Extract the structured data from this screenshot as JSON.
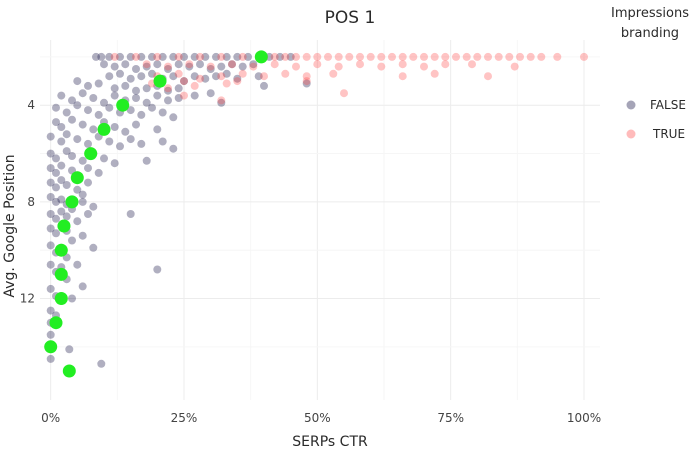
{
  "chart_data": {
    "type": "scatter",
    "title": "POS 1",
    "xlabel": "SERPs CTR",
    "ylabel": "Avg. Google Position",
    "xlim": [
      -0.02,
      1.03
    ],
    "ylim": [
      16.2,
      1.3
    ],
    "y_reversed": true,
    "grid": true,
    "x_ticks": [
      {
        "value": 0,
        "label": "0%"
      },
      {
        "value": 0.25,
        "label": "25%"
      },
      {
        "value": 0.5,
        "label": "50%"
      },
      {
        "value": 0.75,
        "label": "75%"
      },
      {
        "value": 1.0,
        "label": "100%"
      }
    ],
    "y_ticks": [
      {
        "value": 4,
        "label": "4"
      },
      {
        "value": 8,
        "label": "8"
      },
      {
        "value": 12,
        "label": "12"
      }
    ],
    "legend": {
      "title_line1": "Impressions",
      "title_line2": "branding",
      "placement": "right",
      "entries": [
        {
          "label": "FALSE",
          "color": "#1e1b4b"
        },
        {
          "label": "TRUE",
          "color": "#ff3b3b"
        }
      ]
    },
    "series": [
      {
        "name": "FALSE",
        "color": "#1e1b4b",
        "opacity": 0.35,
        "points": [
          [
            0.085,
            2.0
          ],
          [
            0.095,
            2.0
          ],
          [
            0.11,
            2.0
          ],
          [
            0.13,
            2.0
          ],
          [
            0.15,
            2.0
          ],
          [
            0.17,
            2.0
          ],
          [
            0.19,
            2.0
          ],
          [
            0.21,
            2.0
          ],
          [
            0.23,
            2.0
          ],
          [
            0.25,
            2.0
          ],
          [
            0.27,
            2.0
          ],
          [
            0.29,
            2.0
          ],
          [
            0.31,
            2.0
          ],
          [
            0.33,
            2.0
          ],
          [
            0.35,
            2.0
          ],
          [
            0.37,
            2.0
          ],
          [
            0.41,
            2.0
          ],
          [
            0.43,
            2.0
          ],
          [
            0.45,
            2.0
          ],
          [
            0.1,
            2.3
          ],
          [
            0.12,
            2.4
          ],
          [
            0.14,
            2.3
          ],
          [
            0.16,
            2.5
          ],
          [
            0.18,
            2.4
          ],
          [
            0.2,
            2.3
          ],
          [
            0.22,
            2.5
          ],
          [
            0.24,
            2.3
          ],
          [
            0.26,
            2.4
          ],
          [
            0.28,
            2.3
          ],
          [
            0.3,
            2.5
          ],
          [
            0.32,
            2.4
          ],
          [
            0.34,
            2.3
          ],
          [
            0.36,
            2.4
          ],
          [
            0.38,
            2.3
          ],
          [
            0.11,
            2.8
          ],
          [
            0.13,
            2.7
          ],
          [
            0.15,
            2.9
          ],
          [
            0.17,
            2.8
          ],
          [
            0.19,
            2.7
          ],
          [
            0.21,
            2.9
          ],
          [
            0.23,
            2.8
          ],
          [
            0.25,
            3.0
          ],
          [
            0.27,
            2.8
          ],
          [
            0.29,
            2.9
          ],
          [
            0.31,
            2.8
          ],
          [
            0.33,
            2.7
          ],
          [
            0.35,
            2.9
          ],
          [
            0.39,
            2.8
          ],
          [
            0.05,
            3.0
          ],
          [
            0.07,
            3.2
          ],
          [
            0.09,
            3.1
          ],
          [
            0.12,
            3.3
          ],
          [
            0.14,
            3.2
          ],
          [
            0.16,
            3.4
          ],
          [
            0.18,
            3.3
          ],
          [
            0.2,
            3.2
          ],
          [
            0.22,
            3.4
          ],
          [
            0.24,
            3.3
          ],
          [
            0.3,
            3.5
          ],
          [
            0.4,
            3.2
          ],
          [
            0.48,
            3.1
          ],
          [
            0.02,
            3.6
          ],
          [
            0.04,
            3.8
          ],
          [
            0.06,
            3.5
          ],
          [
            0.08,
            3.7
          ],
          [
            0.1,
            3.9
          ],
          [
            0.12,
            3.6
          ],
          [
            0.14,
            3.8
          ],
          [
            0.16,
            3.7
          ],
          [
            0.18,
            3.9
          ],
          [
            0.2,
            3.6
          ],
          [
            0.22,
            3.8
          ],
          [
            0.24,
            3.7
          ],
          [
            0.27,
            3.6
          ],
          [
            0.32,
            3.9
          ],
          [
            0.01,
            4.1
          ],
          [
            0.03,
            4.3
          ],
          [
            0.05,
            4.0
          ],
          [
            0.07,
            4.2
          ],
          [
            0.09,
            4.4
          ],
          [
            0.11,
            4.1
          ],
          [
            0.13,
            4.3
          ],
          [
            0.15,
            4.2
          ],
          [
            0.17,
            4.4
          ],
          [
            0.19,
            4.1
          ],
          [
            0.21,
            4.3
          ],
          [
            0.23,
            4.5
          ],
          [
            0.01,
            4.7
          ],
          [
            0.02,
            4.9
          ],
          [
            0.04,
            4.6
          ],
          [
            0.06,
            4.8
          ],
          [
            0.08,
            5.0
          ],
          [
            0.1,
            4.7
          ],
          [
            0.12,
            4.9
          ],
          [
            0.14,
            5.1
          ],
          [
            0.16,
            4.8
          ],
          [
            0.2,
            5.0
          ],
          [
            0.0,
            5.3
          ],
          [
            0.02,
            5.5
          ],
          [
            0.03,
            5.2
          ],
          [
            0.05,
            5.4
          ],
          [
            0.07,
            5.6
          ],
          [
            0.09,
            5.3
          ],
          [
            0.11,
            5.5
          ],
          [
            0.13,
            5.7
          ],
          [
            0.15,
            5.4
          ],
          [
            0.17,
            5.6
          ],
          [
            0.21,
            5.5
          ],
          [
            0.23,
            5.8
          ],
          [
            0.0,
            6.0
          ],
          [
            0.01,
            6.2
          ],
          [
            0.03,
            5.9
          ],
          [
            0.04,
            6.1
          ],
          [
            0.06,
            6.3
          ],
          [
            0.08,
            6.0
          ],
          [
            0.1,
            6.2
          ],
          [
            0.12,
            6.4
          ],
          [
            0.18,
            6.3
          ],
          [
            0.0,
            6.6
          ],
          [
            0.01,
            6.8
          ],
          [
            0.02,
            6.5
          ],
          [
            0.04,
            6.7
          ],
          [
            0.05,
            6.9
          ],
          [
            0.07,
            6.6
          ],
          [
            0.09,
            6.8
          ],
          [
            0.0,
            7.2
          ],
          [
            0.01,
            7.4
          ],
          [
            0.02,
            7.1
          ],
          [
            0.03,
            7.3
          ],
          [
            0.05,
            7.5
          ],
          [
            0.07,
            7.2
          ],
          [
            0.06,
            7.7
          ],
          [
            0.0,
            7.8
          ],
          [
            0.01,
            8.0
          ],
          [
            0.02,
            7.9
          ],
          [
            0.03,
            8.1
          ],
          [
            0.04,
            8.3
          ],
          [
            0.06,
            8.0
          ],
          [
            0.08,
            8.2
          ],
          [
            0.0,
            8.5
          ],
          [
            0.01,
            8.7
          ],
          [
            0.02,
            8.4
          ],
          [
            0.03,
            8.6
          ],
          [
            0.05,
            8.8
          ],
          [
            0.07,
            8.5
          ],
          [
            0.15,
            8.5
          ],
          [
            0.0,
            9.1
          ],
          [
            0.01,
            9.3
          ],
          [
            0.02,
            9.0
          ],
          [
            0.03,
            9.2
          ],
          [
            0.04,
            9.6
          ],
          [
            0.06,
            9.4
          ],
          [
            0.08,
            9.9
          ],
          [
            0.0,
            9.8
          ],
          [
            0.01,
            10.1
          ],
          [
            0.02,
            9.9
          ],
          [
            0.03,
            10.3
          ],
          [
            0.05,
            10.6
          ],
          [
            0.2,
            10.8
          ],
          [
            0.0,
            10.6
          ],
          [
            0.01,
            10.9
          ],
          [
            0.02,
            10.7
          ],
          [
            0.03,
            11.2
          ],
          [
            0.06,
            11.5
          ],
          [
            0.0,
            11.6
          ],
          [
            0.01,
            11.9
          ],
          [
            0.02,
            12.1
          ],
          [
            0.04,
            12.0
          ],
          [
            0.0,
            12.5
          ],
          [
            0.01,
            12.7
          ],
          [
            0.0,
            13.0
          ],
          [
            0.0,
            13.5
          ],
          [
            0.0,
            14.0
          ],
          [
            0.0,
            14.5
          ],
          [
            0.035,
            14.1
          ],
          [
            0.095,
            14.7
          ]
        ]
      },
      {
        "name": "TRUE",
        "color": "#ff3b3b",
        "opacity": 0.3,
        "points": [
          [
            0.12,
            2.0
          ],
          [
            0.16,
            2.0
          ],
          [
            0.2,
            2.0
          ],
          [
            0.24,
            2.0
          ],
          [
            0.28,
            2.0
          ],
          [
            0.32,
            2.0
          ],
          [
            0.36,
            2.0
          ],
          [
            0.4,
            2.0
          ],
          [
            0.42,
            2.0
          ],
          [
            0.44,
            2.0
          ],
          [
            0.46,
            2.0
          ],
          [
            0.48,
            2.0
          ],
          [
            0.5,
            2.0
          ],
          [
            0.52,
            2.0
          ],
          [
            0.54,
            2.0
          ],
          [
            0.56,
            2.0
          ],
          [
            0.58,
            2.0
          ],
          [
            0.6,
            2.0
          ],
          [
            0.62,
            2.0
          ],
          [
            0.64,
            2.0
          ],
          [
            0.66,
            2.0
          ],
          [
            0.68,
            2.0
          ],
          [
            0.7,
            2.0
          ],
          [
            0.72,
            2.0
          ],
          [
            0.74,
            2.0
          ],
          [
            0.76,
            2.0
          ],
          [
            0.78,
            2.0
          ],
          [
            0.8,
            2.0
          ],
          [
            0.82,
            2.0
          ],
          [
            0.84,
            2.0
          ],
          [
            0.86,
            2.0
          ],
          [
            0.88,
            2.0
          ],
          [
            0.9,
            2.0
          ],
          [
            0.92,
            2.0
          ],
          [
            0.95,
            2.0
          ],
          [
            1.0,
            2.0
          ],
          [
            0.18,
            2.3
          ],
          [
            0.22,
            2.4
          ],
          [
            0.26,
            2.3
          ],
          [
            0.3,
            2.4
          ],
          [
            0.34,
            2.3
          ],
          [
            0.38,
            2.4
          ],
          [
            0.42,
            2.3
          ],
          [
            0.46,
            2.4
          ],
          [
            0.5,
            2.3
          ],
          [
            0.54,
            2.4
          ],
          [
            0.58,
            2.3
          ],
          [
            0.62,
            2.4
          ],
          [
            0.66,
            2.3
          ],
          [
            0.7,
            2.4
          ],
          [
            0.74,
            2.3
          ],
          [
            0.79,
            2.3
          ],
          [
            0.87,
            2.4
          ],
          [
            0.2,
            2.8
          ],
          [
            0.24,
            2.7
          ],
          [
            0.28,
            2.9
          ],
          [
            0.32,
            2.8
          ],
          [
            0.36,
            2.7
          ],
          [
            0.4,
            2.8
          ],
          [
            0.44,
            2.7
          ],
          [
            0.48,
            2.8
          ],
          [
            0.53,
            2.7
          ],
          [
            0.66,
            2.8
          ],
          [
            0.72,
            2.7
          ],
          [
            0.82,
            2.8
          ],
          [
            0.19,
            3.1
          ],
          [
            0.22,
            3.3
          ],
          [
            0.25,
            3.0
          ],
          [
            0.27,
            3.2
          ],
          [
            0.33,
            3.1
          ],
          [
            0.35,
            3.0
          ],
          [
            0.48,
            3.0
          ],
          [
            0.25,
            3.6
          ],
          [
            0.32,
            3.8
          ],
          [
            0.55,
            3.5
          ]
        ]
      },
      {
        "name": "",
        "color": "#22ee22",
        "opacity": 1,
        "points": [
          [
            0.395,
            2.0
          ],
          [
            0.205,
            3.0
          ],
          [
            0.135,
            4.0
          ],
          [
            0.1,
            5.0
          ],
          [
            0.075,
            6.0
          ],
          [
            0.05,
            7.0
          ],
          [
            0.04,
            8.0
          ],
          [
            0.025,
            9.0
          ],
          [
            0.02,
            10.0
          ],
          [
            0.02,
            11.0
          ],
          [
            0.02,
            12.0
          ],
          [
            0.01,
            13.0
          ],
          [
            0.0,
            14.0
          ],
          [
            0.035,
            15.0
          ]
        ]
      }
    ]
  }
}
